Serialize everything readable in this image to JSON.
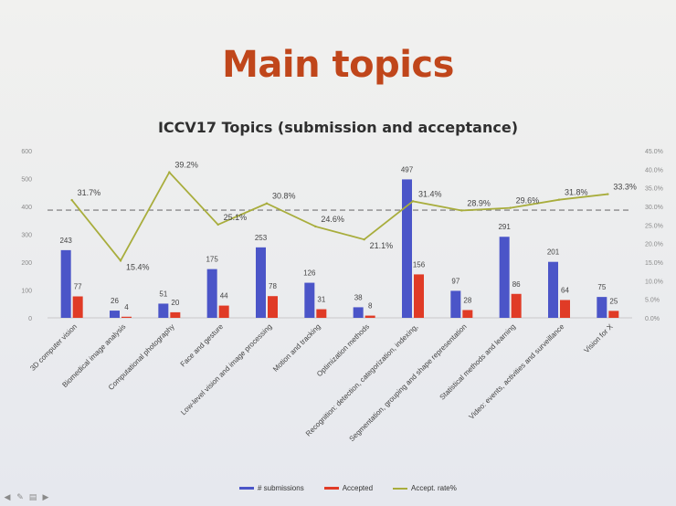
{
  "slide": {
    "title": "Main topics",
    "nav_icons": [
      "arrow-left-icon",
      "pen-icon",
      "slide-sorter-icon",
      "arrow-right-icon"
    ]
  },
  "chart_data": {
    "type": "bar",
    "title": "ICCV17 Topics (submission and acceptance)",
    "categories": [
      "3D computer vision",
      "Biomedical image analysis",
      "Computational photography",
      "Face and gesture",
      "Low-level vision and image processing",
      "Motion and tracking",
      "Optimization methods",
      "Recognition: detection, categorization, indexing,",
      "Segmentation, grouping and shape representation",
      "Statistical methods and learning",
      "Video: events, activities and surveillance",
      "Vision for X"
    ],
    "series": [
      {
        "name": "# submissions",
        "type": "bar",
        "axis": "left",
        "color": "#4b55c8",
        "values": [
          243,
          26,
          51,
          175,
          253,
          126,
          38,
          497,
          97,
          291,
          201,
          75
        ],
        "labels": [
          "243",
          "26",
          "51",
          "175",
          "253",
          "126",
          "38",
          "497",
          "97",
          "291",
          "201",
          "75"
        ]
      },
      {
        "name": "Accepted",
        "type": "bar",
        "axis": "left",
        "color": "#e03b26",
        "values": [
          77,
          4,
          20,
          44,
          78,
          31,
          8,
          156,
          28,
          86,
          64,
          25
        ],
        "labels": [
          "77",
          "4",
          "20",
          "44",
          "78",
          "31",
          "8",
          "156",
          "28",
          "86",
          "64",
          "25"
        ]
      },
      {
        "name": "Accept. rate%",
        "type": "line",
        "axis": "right",
        "color": "#a8ad3c",
        "values": [
          31.7,
          15.4,
          39.2,
          25.1,
          30.8,
          24.6,
          21.1,
          31.4,
          28.9,
          29.6,
          31.8,
          33.3
        ],
        "labels": [
          "31.7%",
          "15.4%",
          "39.2%",
          "25.1%",
          "30.8%",
          "24.6%",
          "21.1%",
          "31.4%",
          "28.9%",
          "29.6%",
          "31.8%",
          "33.3%"
        ]
      }
    ],
    "reference_line": {
      "axis": "right",
      "value": 29.0,
      "style": "dashed"
    },
    "y_left": {
      "min": 0,
      "max": 600,
      "ticks": [
        "0",
        "100",
        "200",
        "300",
        "400",
        "500",
        "600"
      ]
    },
    "y_right": {
      "min": 0,
      "max": 45,
      "ticks": [
        "0.0%",
        "5.0%",
        "10.0%",
        "15.0%",
        "20.0%",
        "25.0%",
        "30.0%",
        "35.0%",
        "40.0%",
        "45.0%"
      ]
    },
    "legend": "bottom",
    "grid": false
  }
}
